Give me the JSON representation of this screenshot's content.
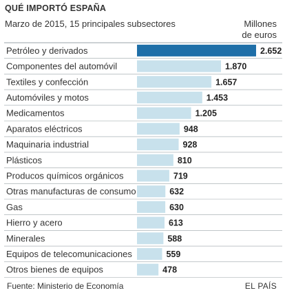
{
  "header": {
    "title": "QUÉ IMPORTÓ ESPAÑA",
    "subtitle": "Marzo de 2015, 15 principales subsectores",
    "unit": "Millones\nde euros"
  },
  "footer": {
    "source": "Fuente: Ministerio de Economía",
    "credit": "EL PAÍS"
  },
  "colors": {
    "highlight": "#1f6fa8",
    "bar": "#c8e1ec",
    "rule": "#9aa3a8"
  },
  "chart_data": {
    "type": "bar",
    "orientation": "horizontal",
    "title": "QUÉ IMPORTÓ ESPAÑA",
    "subtitle": "Marzo de 2015, 15 principales subsectores",
    "ylabel": "Millones de euros",
    "xlim": [
      0,
      2652
    ],
    "categories": [
      "Petróleo y derivados",
      "Componentes del automóvil",
      "Textiles y confección",
      "Automóviles y motos",
      "Medicamentos",
      "Aparatos eléctricos",
      "Maquinaria industrial",
      "Plásticos",
      "Producos químicos orgánicos",
      "Otras manufacturas de consumo",
      "Gas",
      "Hierro y acero",
      "Minerales",
      "Equipos de telecomunicaciones",
      "Otros bienes de equipos"
    ],
    "values": [
      2652,
      1870,
      1657,
      1453,
      1205,
      948,
      928,
      810,
      719,
      632,
      630,
      613,
      588,
      559,
      478
    ],
    "value_labels": [
      "2.652",
      "1.870",
      "1.657",
      "1.453",
      "1.205",
      "948",
      "928",
      "810",
      "719",
      "632",
      "630",
      "613",
      "588",
      "559",
      "478"
    ],
    "highlight_index": 0,
    "grid": false,
    "legend": "none"
  }
}
